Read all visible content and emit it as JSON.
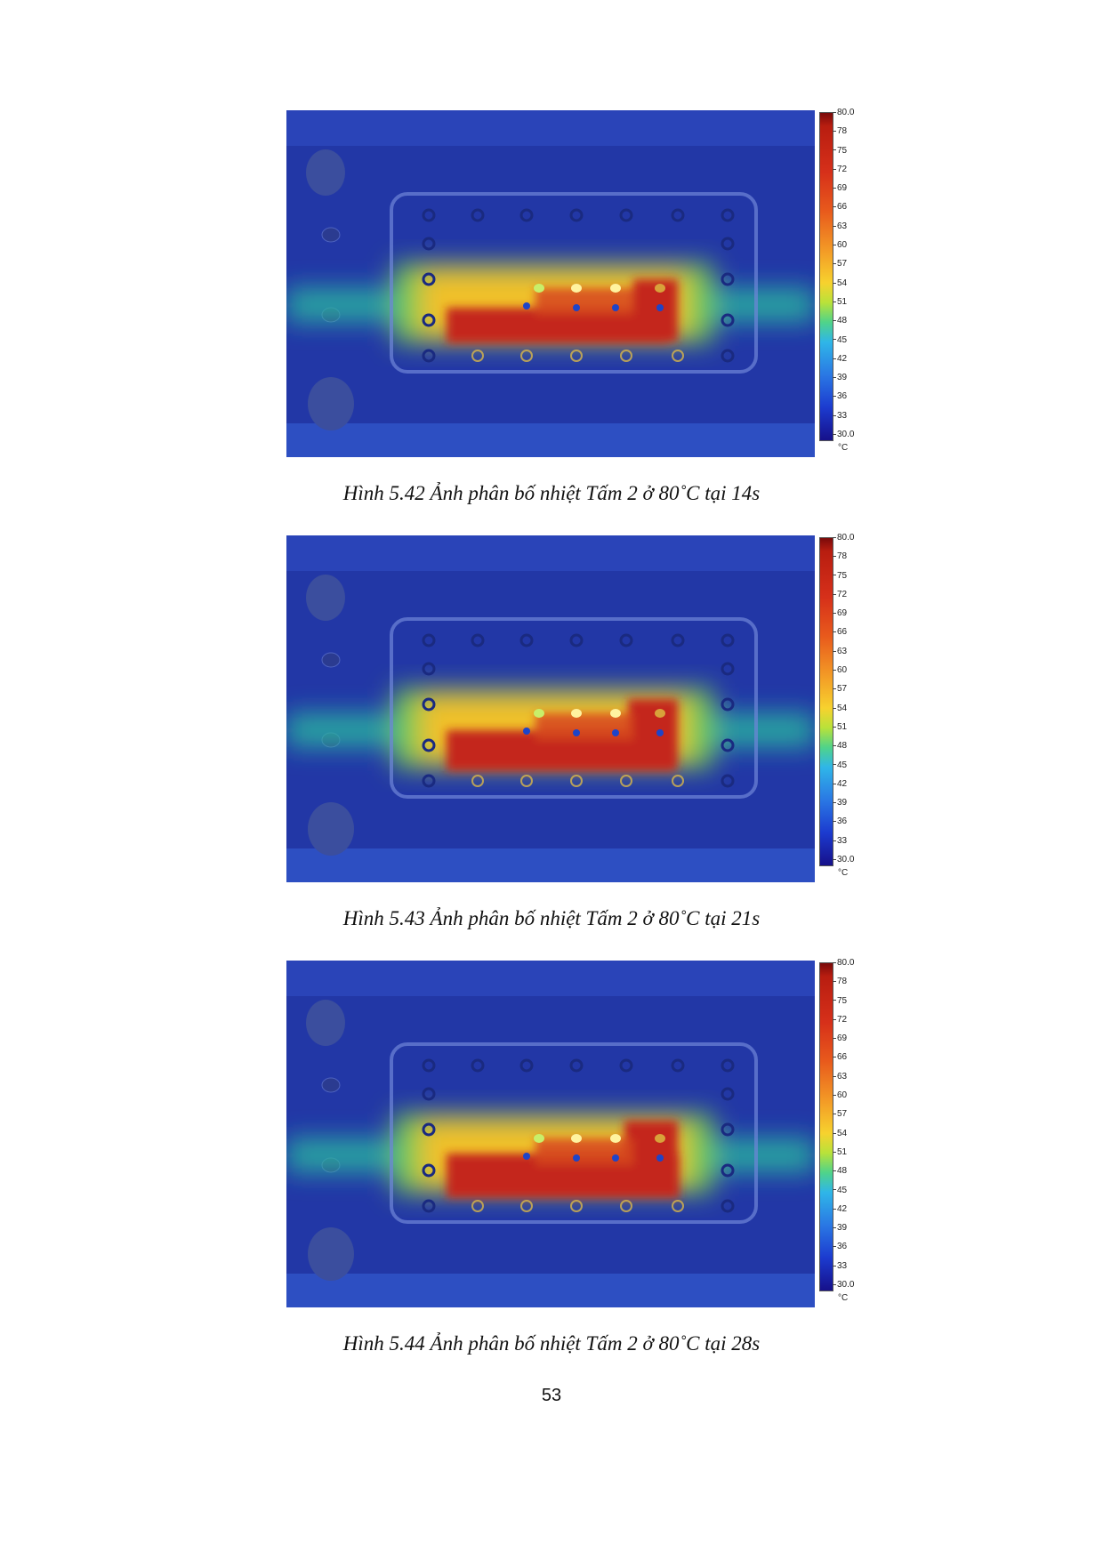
{
  "figures": [
    {
      "caption": "Hình 5.42 Ảnh phân bố nhiệt Tấm 2 ở 80˚C tại 14s",
      "scale_labels": [
        "80.0",
        "78",
        "75",
        "72",
        "69",
        "66",
        "63",
        "60",
        "57",
        "54",
        "51",
        "48",
        "45",
        "42",
        "39",
        "36",
        "33",
        "30.0"
      ],
      "unit": "°C"
    },
    {
      "caption": "Hình 5.43 Ảnh phân bố nhiệt Tấm 2 ở 80˚C tại 21s",
      "scale_labels": [
        "80.0",
        "78",
        "75",
        "72",
        "69",
        "66",
        "63",
        "60",
        "57",
        "54",
        "51",
        "48",
        "45",
        "42",
        "39",
        "36",
        "33",
        "30.0"
      ],
      "unit": "°C"
    },
    {
      "caption": "Hình 5.44 Ảnh phân bố nhiệt Tấm 2 ở 80˚C tại 28s",
      "scale_labels": [
        "80.0",
        "78",
        "75",
        "72",
        "69",
        "66",
        "63",
        "60",
        "57",
        "54",
        "51",
        "48",
        "45",
        "42",
        "39",
        "36",
        "33",
        "30.0"
      ],
      "unit": "°C"
    }
  ],
  "page_number": "53"
}
